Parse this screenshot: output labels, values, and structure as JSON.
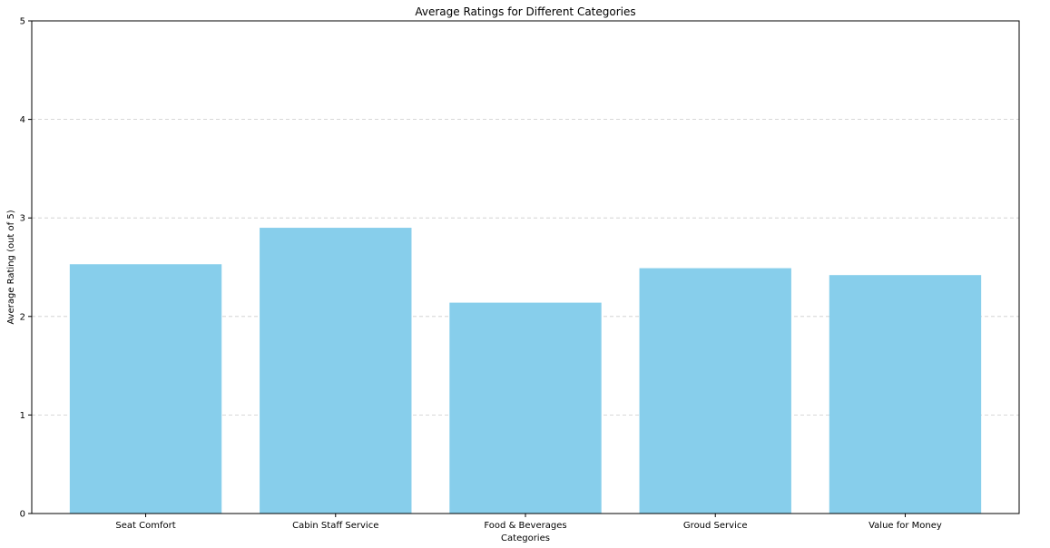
{
  "chart_data": {
    "type": "bar",
    "title": "Average Ratings for Different Categories",
    "xlabel": "Categories",
    "ylabel": "Average Rating (out of 5)",
    "categories": [
      "Seat Comfort",
      "Cabin Staff Service",
      "Food & Beverages",
      "Groud Service",
      "Value for Money"
    ],
    "values": [
      2.53,
      2.9,
      2.14,
      2.49,
      2.42
    ],
    "ylim": [
      0,
      5
    ],
    "yticks": [
      "0",
      "1",
      "2",
      "3",
      "4",
      "5"
    ],
    "grid": "y-dashed",
    "bar_color": "#87ceeb",
    "grid_color": "#cccccc"
  }
}
